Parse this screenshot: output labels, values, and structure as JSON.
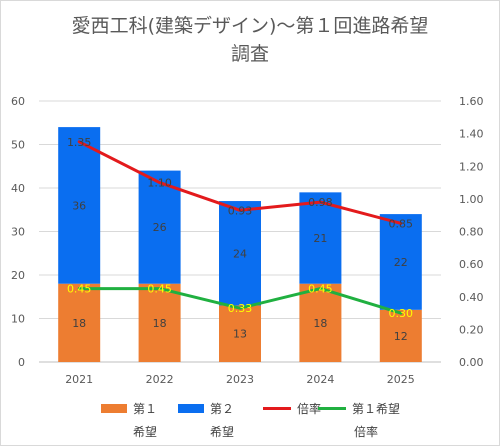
{
  "chart_data": {
    "type": "bar",
    "title_line1": "愛西工科(建築デザイン)～第１回進路希望",
    "title_line2": "調査",
    "categories": [
      "2021",
      "2022",
      "2023",
      "2024",
      "2025"
    ],
    "series": [
      {
        "name": "第１希望",
        "kind": "bar",
        "axis": "left",
        "color": "#ed7d31",
        "values": [
          18,
          18,
          13,
          18,
          12
        ],
        "labels": [
          "18",
          "18",
          "13",
          "18",
          "12"
        ]
      },
      {
        "name": "第２希望",
        "kind": "bar",
        "axis": "left",
        "color": "#0a6ef0",
        "values": [
          36,
          26,
          24,
          21,
          22
        ],
        "labels": [
          "36",
          "26",
          "24",
          "21",
          "22"
        ]
      },
      {
        "name": "倍率",
        "kind": "line",
        "axis": "right",
        "color": "#e31a1c",
        "values": [
          1.35,
          1.1,
          0.93,
          0.98,
          0.85
        ],
        "labels": [
          "1.35",
          "1.10",
          "0.93",
          "0.98",
          "0.85"
        ]
      },
      {
        "name": "第１希望倍率",
        "kind": "line",
        "axis": "right",
        "color": "#20b040",
        "values": [
          0.45,
          0.45,
          0.33,
          0.45,
          0.3
        ],
        "labels": [
          "0.45",
          "0.45",
          "0.33",
          "0.45",
          "0.30"
        ]
      }
    ],
    "left_axis": {
      "ylim": [
        0,
        60
      ],
      "ticks": [
        "0",
        "10",
        "20",
        "30",
        "40",
        "50",
        "60"
      ]
    },
    "right_axis": {
      "ylim": [
        0,
        1.6
      ],
      "ticks": [
        "0.00",
        "0.20",
        "0.40",
        "0.60",
        "0.80",
        "1.00",
        "1.20",
        "1.40",
        "1.60"
      ]
    },
    "grid": true,
    "legend": {
      "position": "bottom",
      "items": [
        {
          "line1": "第１",
          "line2": "希望",
          "color": "#ed7d31",
          "marker": "box"
        },
        {
          "line1": "第２",
          "line2": "希望",
          "color": "#0a6ef0",
          "marker": "box"
        },
        {
          "line1": "倍率",
          "line2": "",
          "color": "#e31a1c",
          "marker": "line"
        },
        {
          "line1": "第１希望",
          "line2": "倍率",
          "color": "#20b040",
          "marker": "line"
        }
      ]
    }
  }
}
